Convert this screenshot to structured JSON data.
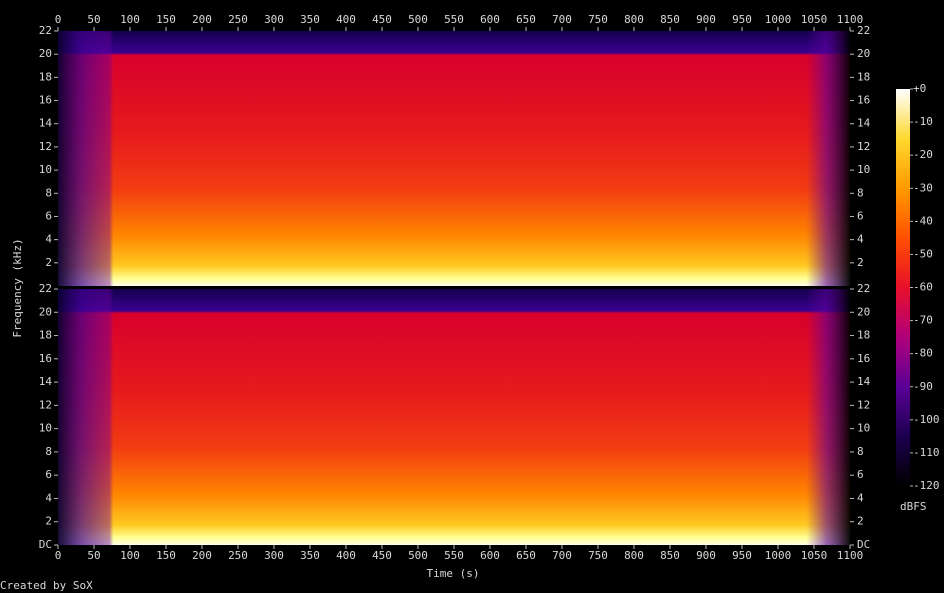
{
  "chart_data": {
    "type": "spectrogram",
    "x_label": "Time (s)",
    "y_label": "Frequency (kHz)",
    "credit": "Created by SoX",
    "xlim": [
      0,
      1100
    ],
    "xticks": [
      0,
      50,
      100,
      150,
      200,
      250,
      300,
      350,
      400,
      450,
      500,
      550,
      600,
      650,
      700,
      750,
      800,
      850,
      900,
      950,
      1000,
      1050,
      1100
    ],
    "channels": [
      {
        "ylim": [
          0,
          22
        ],
        "yticks": [
          2,
          4,
          6,
          8,
          10,
          12,
          14,
          16,
          18,
          20,
          22
        ]
      },
      {
        "ylim": [
          0,
          22
        ],
        "yticks": [
          {
            "value": 0,
            "label": "DC"
          },
          2,
          4,
          6,
          8,
          10,
          12,
          14,
          16,
          18,
          20,
          22
        ]
      }
    ],
    "colorbar_label": "dBFS",
    "clim": [
      -120,
      0
    ],
    "cticks": [
      {
        "value": 0,
        "label": "+0"
      },
      -10,
      -20,
      -30,
      -40,
      -50,
      -60,
      -70,
      -80,
      -90,
      -100,
      -110,
      -120
    ],
    "colormap": [
      "#000000",
      "#1c0050",
      "#5a0096",
      "#b0007a",
      "#e8102a",
      "#ff5000",
      "#ff9a00",
      "#ffd830",
      "#ffffff"
    ]
  }
}
